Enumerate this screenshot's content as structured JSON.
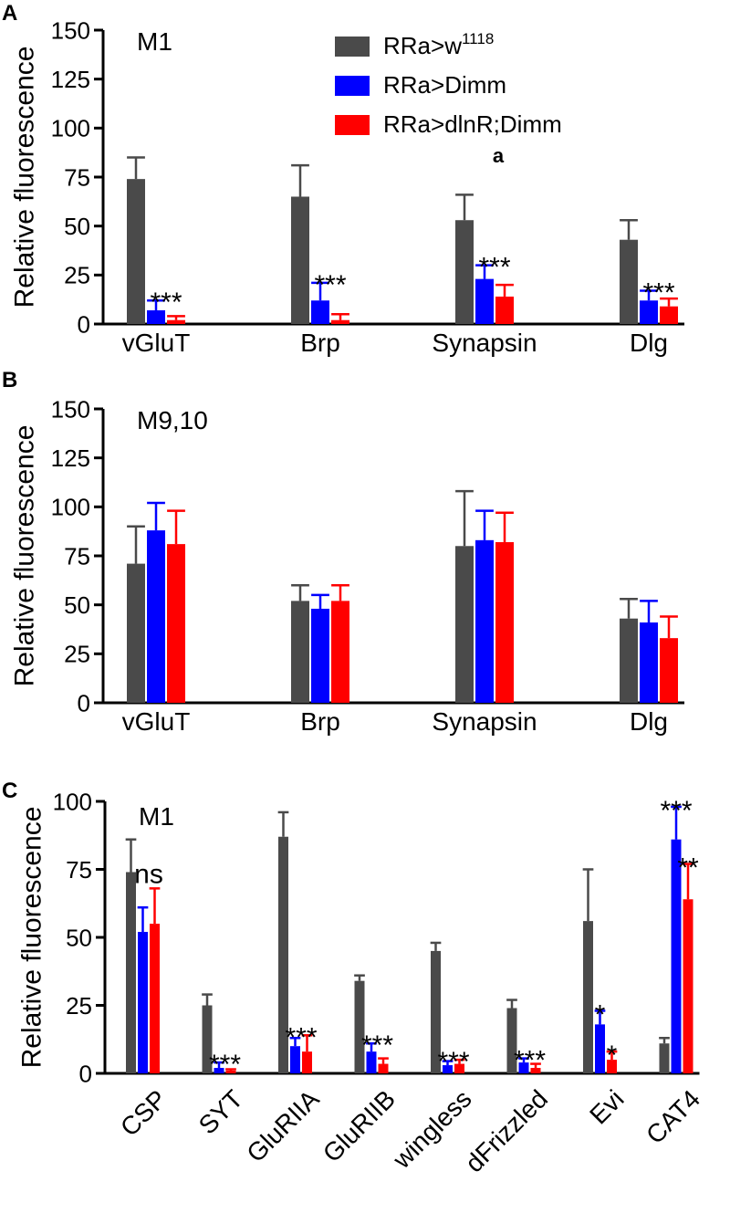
{
  "legend": [
    {
      "name": "RRa>w",
      "sup": "1118",
      "color": "#4a4a4a"
    },
    {
      "name": "RRa>Dimm",
      "sup": "",
      "color": "#0000ff"
    },
    {
      "name": "RRa>dlnR;Dimm",
      "sup": "",
      "color": "#ff0000"
    }
  ],
  "chart_data": [
    {
      "type": "bar",
      "panel": "A",
      "subtitle": "M1",
      "ylabel": "Relative fluorescence",
      "ylim": [
        0,
        150
      ],
      "yticks": [
        0,
        25,
        50,
        75,
        100,
        125,
        150
      ],
      "categories": [
        "vGluT",
        "Brp",
        "Synapsin",
        "Dlg"
      ],
      "series": [
        {
          "name": "RRa>w1118",
          "values": [
            74,
            65,
            53,
            43
          ],
          "errors": [
            11,
            16,
            13,
            10
          ]
        },
        {
          "name": "RRa>Dimm",
          "values": [
            7,
            12,
            23,
            12
          ],
          "errors": [
            5,
            9,
            7,
            5
          ]
        },
        {
          "name": "RRa>dlnR;Dimm",
          "values": [
            2,
            2,
            14,
            9
          ],
          "errors": [
            2,
            3,
            6,
            4
          ]
        }
      ],
      "significance": [
        "***",
        "***",
        "***",
        "***"
      ],
      "annotation": "a"
    },
    {
      "type": "bar",
      "panel": "B",
      "subtitle": "M9,10",
      "ylabel": "Relative fluorescence",
      "ylim": [
        0,
        150
      ],
      "yticks": [
        0,
        25,
        50,
        75,
        100,
        125,
        150
      ],
      "categories": [
        "vGluT",
        "Brp",
        "Synapsin",
        "Dlg"
      ],
      "series": [
        {
          "name": "RRa>w1118",
          "values": [
            71,
            52,
            80,
            43
          ],
          "errors": [
            19,
            8,
            28,
            10
          ]
        },
        {
          "name": "RRa>Dimm",
          "values": [
            88,
            48,
            83,
            41
          ],
          "errors": [
            14,
            7,
            15,
            11
          ]
        },
        {
          "name": "RRa>dlnR;Dimm",
          "values": [
            81,
            52,
            82,
            33
          ],
          "errors": [
            17,
            8,
            15,
            11
          ]
        }
      ]
    },
    {
      "type": "bar",
      "panel": "C",
      "subtitle": "M1",
      "ylabel": "Relative fluorescence",
      "ylim": [
        0,
        100
      ],
      "yticks": [
        0,
        25,
        50,
        75,
        100
      ],
      "categories": [
        "CSP",
        "SYT",
        "GluRIIA",
        "GluRIIB",
        "wingless",
        "dFrizzled",
        "Evi",
        "CAT4"
      ],
      "series": [
        {
          "name": "RRa>w1118",
          "values": [
            74,
            25,
            87,
            34,
            45,
            24,
            56,
            11
          ],
          "errors": [
            12,
            4,
            9,
            2,
            3,
            3,
            19,
            2
          ]
        },
        {
          "name": "RRa>Dimm",
          "values": [
            52,
            2,
            10,
            8,
            3,
            4,
            18,
            86
          ],
          "errors": [
            9,
            2,
            3,
            3,
            1.5,
            1.5,
            5,
            12
          ]
        },
        {
          "name": "RRa>dlnR;Dimm",
          "values": [
            55,
            1,
            8,
            3.5,
            3.5,
            2,
            5,
            64
          ],
          "errors": [
            13,
            0.5,
            6,
            2,
            1.5,
            1.5,
            3,
            13
          ]
        }
      ],
      "group_labels": [
        "ns",
        "***",
        "***",
        "***",
        "***",
        "***",
        "",
        ""
      ],
      "bar_labels": [
        {
          "category": "Evi",
          "series": 1,
          "text": "*"
        },
        {
          "category": "Evi",
          "series": 2,
          "text": "*"
        },
        {
          "category": "CAT4",
          "series": 1,
          "text": "***"
        },
        {
          "category": "CAT4",
          "series": 2,
          "text": "**"
        }
      ]
    }
  ]
}
